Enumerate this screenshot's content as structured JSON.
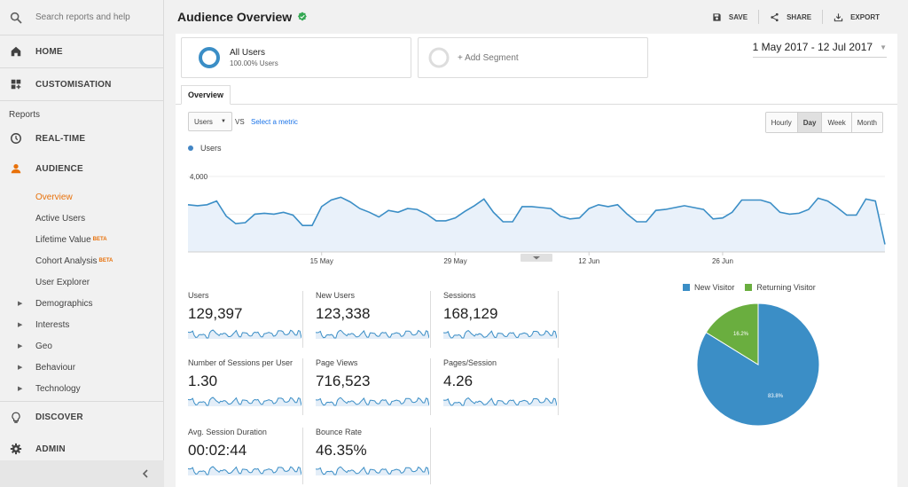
{
  "search": {
    "placeholder": "Search reports and help"
  },
  "sidebar": {
    "home": "HOME",
    "customisation": "CUSTOMISATION",
    "reports_label": "Reports",
    "realtime": "REAL-TIME",
    "audience": "AUDIENCE",
    "audience_items": [
      {
        "label": "Overview"
      },
      {
        "label": "Active Users"
      },
      {
        "label": "Lifetime Value",
        "badge": "BETA"
      },
      {
        "label": "Cohort Analysis",
        "badge": "BETA"
      },
      {
        "label": "User Explorer"
      }
    ],
    "groups": [
      "Demographics",
      "Interests",
      "Geo",
      "Behaviour",
      "Technology"
    ],
    "discover": "DISCOVER",
    "admin": "ADMIN"
  },
  "header": {
    "title": "Audience Overview",
    "save": "SAVE",
    "share": "SHARE",
    "export": "EXPORT"
  },
  "segments": {
    "all_users_title": "All Users",
    "all_users_sub": "100.00% Users",
    "add_segment": "+ Add Segment"
  },
  "date_range": "1 May 2017 - 12 Jul 2017",
  "tabs": {
    "overview": "Overview"
  },
  "controls": {
    "metric": "Users",
    "vs": "VS",
    "select_metric": "Select a metric",
    "granularity": [
      "Hourly",
      "Day",
      "Week",
      "Month"
    ],
    "selected_granularity": "Day"
  },
  "colors": {
    "accent": "#4285c4",
    "new_visitor": "#3b8ec6",
    "returning_visitor": "#6aae3f",
    "active": "#e8710a"
  },
  "chart_data": [
    {
      "type": "area",
      "series": [
        {
          "name": "Users"
        }
      ],
      "y_ticks": [
        "4,000",
        "2,000"
      ],
      "ylim": [
        0,
        4700
      ],
      "x_tick_labels": [
        "15 May",
        "29 May",
        "12 Jun",
        "26 Jun"
      ],
      "x_tick_days": [
        14,
        28,
        42,
        56
      ],
      "values": [
        2500,
        2450,
        2500,
        2700,
        1900,
        1500,
        1550,
        2000,
        2050,
        2000,
        2100,
        1950,
        1400,
        1400,
        2400,
        2750,
        2900,
        2650,
        2300,
        2100,
        1850,
        2200,
        2100,
        2300,
        2250,
        2000,
        1650,
        1650,
        1800,
        2150,
        2450,
        2800,
        2100,
        1600,
        1600,
        2400,
        2400,
        2350,
        2300,
        1900,
        1750,
        1800,
        2300,
        2500,
        2400,
        2500,
        2000,
        1600,
        1600,
        2200,
        2250,
        2350,
        2450,
        2350,
        2250,
        1750,
        1800,
        2100,
        2750,
        2750,
        2750,
        2600,
        2100,
        2000,
        2050,
        2250,
        2850,
        2700,
        2350,
        1950,
        1950,
        2800,
        2700,
        400
      ]
    },
    {
      "type": "pie",
      "legend": [
        "New Visitor",
        "Returning Visitor"
      ],
      "values": [
        83.8,
        16.2
      ],
      "labels": [
        "83.8%",
        "16.2%"
      ]
    }
  ],
  "scorecards": [
    {
      "label": "Users",
      "value": "129,397"
    },
    {
      "label": "New Users",
      "value": "123,338"
    },
    {
      "label": "Sessions",
      "value": "168,129"
    },
    {
      "label": "Number of Sessions per User",
      "value": "1.30"
    },
    {
      "label": "Page Views",
      "value": "716,523"
    },
    {
      "label": "Pages/Session",
      "value": "4.26"
    },
    {
      "label": "Avg. Session Duration",
      "value": "00:02:44"
    },
    {
      "label": "Bounce Rate",
      "value": "46.35%"
    }
  ]
}
